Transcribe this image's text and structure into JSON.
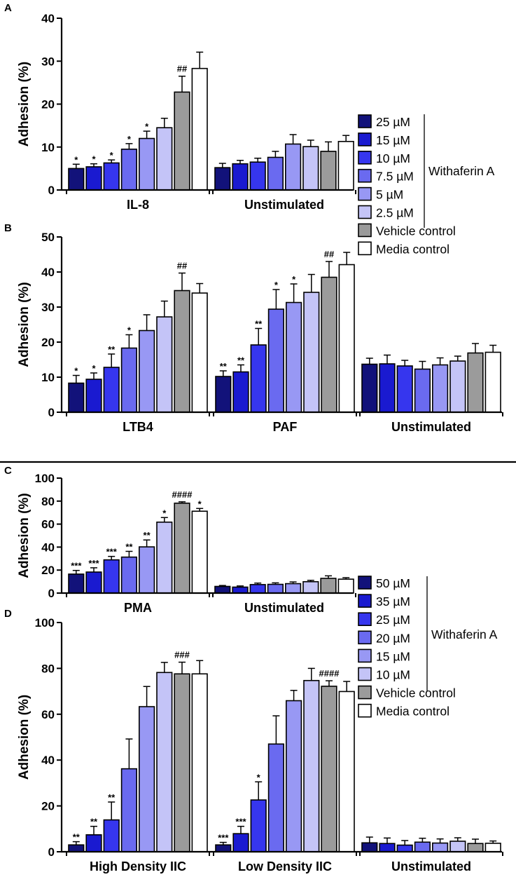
{
  "colors": {
    "shades": [
      "#12127a",
      "#1a1ad0",
      "#3636ee",
      "#6a6af0",
      "#9898f4",
      "#c4c4f7",
      "#9b9b9b",
      "#ffffff"
    ]
  },
  "legend_top": {
    "items": [
      "25 µM",
      "15 µM",
      "10 µM",
      "7.5 µM",
      "5 µM",
      "2.5 µM",
      "Vehicle control",
      "Media control"
    ],
    "bracket_label": "Withaferin A"
  },
  "legend_bottom": {
    "items": [
      "50 µM",
      "35 µM",
      "25 µM",
      "20 µM",
      "15 µM",
      "10 µM",
      "Vehicle control",
      "Media control"
    ],
    "bracket_label": "Withaferin A"
  },
  "chart_data": [
    {
      "panel": "A",
      "type": "bar",
      "ylabel": "Adhesion (%)",
      "ylim": [
        0,
        40
      ],
      "yticks": [
        0,
        10,
        20,
        30,
        40
      ],
      "categories": [
        "IL-8",
        "Unstimulated"
      ],
      "series_names": [
        "25 µM",
        "15 µM",
        "10 µM",
        "7.5 µM",
        "5 µM",
        "2.5 µM",
        "Vehicle control",
        "Media control"
      ],
      "groups": [
        {
          "values": [
            5.0,
            5.4,
            6.3,
            9.5,
            12.0,
            14.5,
            22.8,
            28.3
          ],
          "errors": [
            1.0,
            0.7,
            0.7,
            1.3,
            1.7,
            2.2,
            3.7,
            3.8
          ],
          "sig": [
            "*",
            "*",
            "*",
            "*",
            "*",
            "",
            "##",
            ""
          ]
        },
        {
          "values": [
            5.2,
            6.1,
            6.5,
            7.6,
            10.7,
            10.1,
            9.0,
            11.3
          ],
          "errors": [
            1.0,
            0.8,
            0.9,
            1.4,
            2.2,
            1.5,
            2.2,
            1.4
          ],
          "sig": [
            "",
            "",
            "",
            "",
            "",
            "",
            "",
            ""
          ]
        }
      ]
    },
    {
      "panel": "B",
      "type": "bar",
      "ylabel": "Adhesion (%)",
      "ylim": [
        0,
        50
      ],
      "yticks": [
        0,
        10,
        20,
        30,
        40,
        50
      ],
      "categories": [
        "LTB4",
        "PAF",
        "Unstimulated"
      ],
      "series_names": [
        "25 µM",
        "15 µM",
        "10 µM",
        "7.5 µM",
        "5 µM",
        "2.5 µM",
        "Vehicle control",
        "Media control"
      ],
      "groups": [
        {
          "values": [
            8.3,
            9.4,
            12.8,
            18.3,
            23.3,
            27.2,
            34.7,
            34.0
          ],
          "errors": [
            2.2,
            1.8,
            3.8,
            3.8,
            4.5,
            4.5,
            5.0,
            2.7
          ],
          "sig": [
            "*",
            "*",
            "**",
            "*",
            "",
            "",
            "##",
            ""
          ]
        },
        {
          "values": [
            10.2,
            11.5,
            19.2,
            29.4,
            31.3,
            34.2,
            38.5,
            42.1
          ],
          "errors": [
            1.6,
            2.0,
            4.7,
            5.6,
            5.3,
            5.1,
            4.5,
            3.5
          ],
          "sig": [
            "**",
            "**",
            "**",
            "*",
            "*",
            "",
            "##",
            ""
          ]
        },
        {
          "values": [
            13.7,
            13.8,
            13.2,
            12.3,
            13.5,
            14.6,
            16.9,
            17.1
          ],
          "errors": [
            1.7,
            2.5,
            1.6,
            2.2,
            2.0,
            1.4,
            2.7,
            2.0
          ],
          "sig": [
            "",
            "",
            "",
            "",
            "",
            "",
            "",
            ""
          ]
        }
      ]
    },
    {
      "panel": "C",
      "type": "bar",
      "ylabel": "Adhesion (%)",
      "ylim": [
        0,
        100
      ],
      "yticks": [
        0,
        20,
        40,
        60,
        80,
        100
      ],
      "categories": [
        "PMA",
        "Unstimulated"
      ],
      "series_names": [
        "50 µM",
        "35 µM",
        "25 µM",
        "20 µM",
        "15 µM",
        "10 µM",
        "Vehicle control",
        "Media control"
      ],
      "groups": [
        {
          "values": [
            16.5,
            18.3,
            28.9,
            31.3,
            40.2,
            61.7,
            78.2,
            71.2
          ],
          "errors": [
            3.2,
            3.7,
            3.0,
            5.0,
            6.0,
            4.0,
            1.2,
            2.4
          ],
          "sig": [
            "***",
            "***",
            "***",
            "**",
            "**",
            "*",
            "####",
            "*"
          ]
        },
        {
          "values": [
            5.8,
            5.2,
            7.4,
            7.6,
            8.2,
            9.9,
            12.8,
            12.1
          ],
          "errors": [
            0.8,
            1.0,
            1.3,
            1.3,
            1.5,
            1.2,
            2.2,
            1.3
          ],
          "sig": [
            "",
            "",
            "",
            "",
            "",
            "",
            "",
            ""
          ]
        }
      ]
    },
    {
      "panel": "D",
      "type": "bar",
      "ylabel": "Adhesion (%)",
      "ylim": [
        0,
        100
      ],
      "yticks": [
        0,
        20,
        40,
        60,
        80,
        100
      ],
      "categories": [
        "High Density IIC",
        "Low Density IIC",
        "Unstimulated"
      ],
      "series_names": [
        "50 µM",
        "35 µM",
        "25 µM",
        "20 µM",
        "15 µM",
        "10 µM",
        "Vehicle control",
        "Media control"
      ],
      "groups": [
        {
          "values": [
            3.0,
            7.4,
            13.9,
            36.2,
            63.3,
            78.2,
            77.6,
            77.6
          ],
          "errors": [
            1.4,
            3.7,
            7.8,
            13.0,
            8.8,
            4.4,
            5.1,
            5.8
          ],
          "sig": [
            "**",
            "**",
            "**",
            "",
            "",
            "",
            "###",
            ""
          ]
        },
        {
          "values": [
            3.0,
            7.9,
            22.6,
            47.0,
            65.9,
            74.7,
            72.2,
            69.9
          ],
          "errors": [
            1.1,
            3.2,
            7.9,
            12.3,
            4.5,
            5.3,
            2.4,
            4.4
          ],
          "sig": [
            "***",
            "***",
            "*",
            "",
            "",
            "",
            "####",
            ""
          ]
        },
        {
          "values": [
            3.9,
            3.6,
            2.9,
            4.2,
            3.8,
            4.6,
            3.6,
            3.7
          ],
          "errors": [
            2.5,
            2.4,
            2.0,
            1.7,
            1.8,
            1.5,
            1.9,
            1.0
          ],
          "sig": [
            "",
            "",
            "",
            "",
            "",
            "",
            "",
            ""
          ]
        }
      ]
    }
  ]
}
